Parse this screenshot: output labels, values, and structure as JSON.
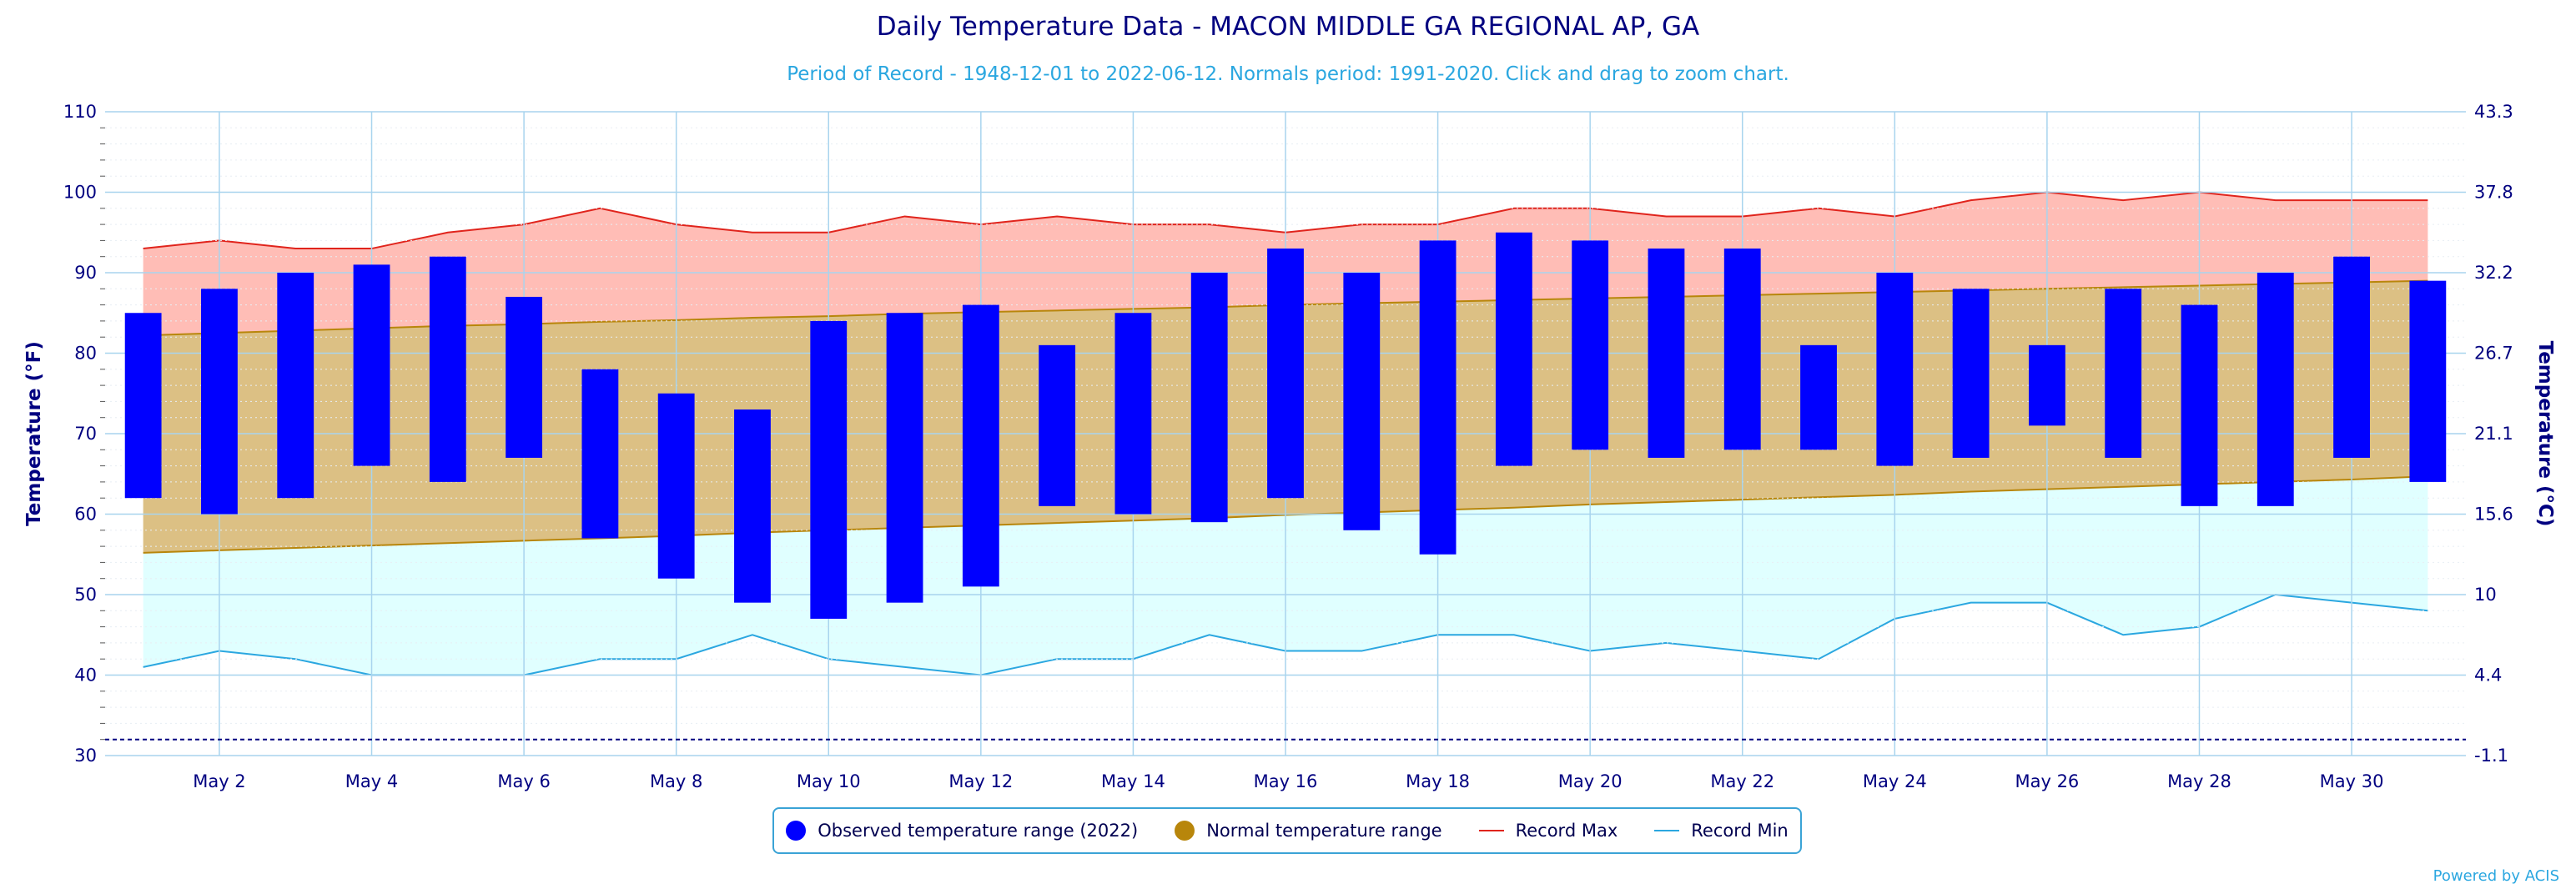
{
  "title": "Daily Temperature Data - MACON MIDDLE GA REGIONAL AP, GA",
  "subtitle": "Period of Record - 1948-12-01 to 2022-06-12. Normals period: 1991-2020. Click and drag to zoom chart.",
  "credit": "Powered by ACIS",
  "legend": {
    "observed": "Observed temperature range (2022)",
    "normal": "Normal temperature range",
    "record_max": "Record Max",
    "record_min": "Record Min"
  },
  "colors": {
    "observed": "#0000ff",
    "normal_fill": "#dcc084",
    "normal_line": "#b8860b",
    "record_max_fill": "#ffbdb6",
    "record_max_line": "#e0241c",
    "record_min_fill": "#e0ffff",
    "record_min_line": "#2ba7e0",
    "axis_text": "#000080"
  },
  "chart_data": {
    "type": "bar",
    "x": [
      "May 1",
      "May 2",
      "May 3",
      "May 4",
      "May 5",
      "May 6",
      "May 7",
      "May 8",
      "May 9",
      "May 10",
      "May 11",
      "May 12",
      "May 13",
      "May 14",
      "May 15",
      "May 16",
      "May 17",
      "May 18",
      "May 19",
      "May 20",
      "May 21",
      "May 22",
      "May 23",
      "May 24",
      "May 25",
      "May 26",
      "May 27",
      "May 28",
      "May 29",
      "May 30",
      "May 31"
    ],
    "x_ticks": [
      "May 2",
      "May 4",
      "May 6",
      "May 8",
      "May 10",
      "May 12",
      "May 14",
      "May 16",
      "May 18",
      "May 20",
      "May 22",
      "May 24",
      "May 26",
      "May 28",
      "May 30"
    ],
    "ylabel": "Temperature (°F)",
    "ylabel_right": "Temperature (°C)",
    "ylim": [
      30,
      110
    ],
    "y_ticks": [
      30,
      40,
      50,
      60,
      70,
      80,
      90,
      100,
      110
    ],
    "y_ticks_right": [
      "-1.1",
      "4.4",
      "10",
      "15.6",
      "21.1",
      "26.7",
      "32.2",
      "37.8",
      "43.3"
    ],
    "freezing_line": 32,
    "observed_high": [
      85,
      88,
      90,
      91,
      92,
      87,
      78,
      75,
      73,
      84,
      85,
      86,
      81,
      85,
      90,
      93,
      90,
      94,
      95,
      94,
      93,
      93,
      81,
      90,
      88,
      81,
      88,
      86,
      90,
      92,
      89
    ],
    "observed_low": [
      62,
      60,
      62,
      66,
      64,
      67,
      57,
      52,
      49,
      47,
      49,
      51,
      61,
      60,
      59,
      62,
      58,
      55,
      66,
      68,
      67,
      68,
      68,
      66,
      67,
      71,
      67,
      61,
      61,
      67,
      64
    ],
    "normal_high": [
      82.2,
      82.5,
      82.8,
      83.1,
      83.4,
      83.6,
      83.9,
      84.1,
      84.4,
      84.6,
      84.9,
      85.1,
      85.3,
      85.5,
      85.7,
      86.0,
      86.2,
      86.4,
      86.6,
      86.8,
      87.0,
      87.2,
      87.4,
      87.6,
      87.8,
      88.0,
      88.2,
      88.4,
      88.6,
      88.8,
      89.0
    ],
    "normal_low": [
      55.2,
      55.5,
      55.8,
      56.1,
      56.4,
      56.7,
      57.0,
      57.3,
      57.7,
      58.0,
      58.3,
      58.6,
      58.9,
      59.2,
      59.5,
      59.9,
      60.2,
      60.5,
      60.8,
      61.2,
      61.5,
      61.8,
      62.1,
      62.4,
      62.8,
      63.1,
      63.4,
      63.7,
      64.0,
      64.3,
      64.7
    ],
    "record_max": [
      93,
      94,
      93,
      93,
      95,
      96,
      98,
      96,
      95,
      95,
      97,
      96,
      97,
      96,
      96,
      95,
      96,
      96,
      98,
      98,
      97,
      97,
      98,
      97,
      99,
      100,
      99,
      100,
      99,
      99,
      99
    ],
    "record_min": [
      41,
      43,
      42,
      40,
      40,
      40,
      42,
      42,
      45,
      42,
      41,
      40,
      42,
      42,
      45,
      43,
      43,
      45,
      45,
      43,
      44,
      43,
      42,
      47,
      49,
      49,
      45,
      46,
      50,
      49,
      48
    ],
    "grid": true
  }
}
